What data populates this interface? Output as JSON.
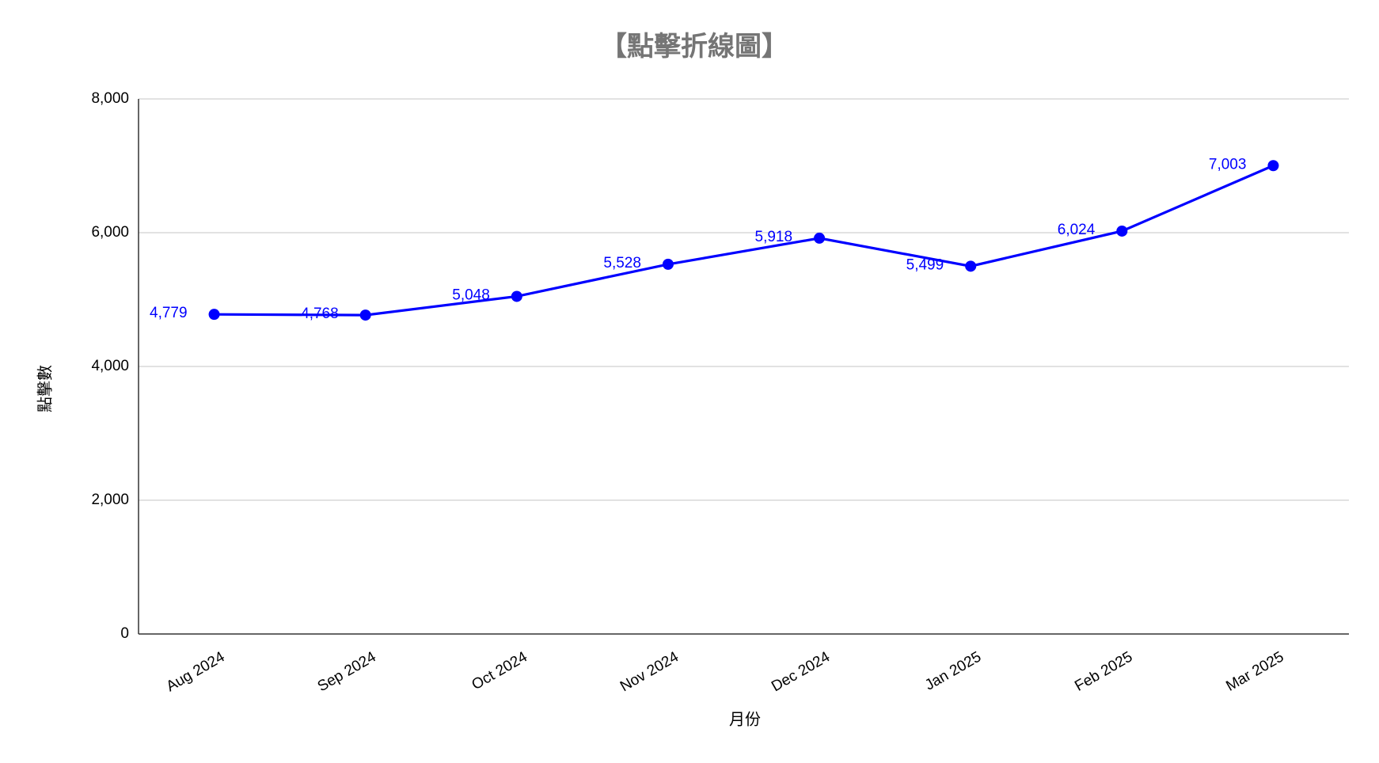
{
  "chart_data": {
    "type": "line",
    "title": "【點擊折線圖】",
    "x_label": "月份",
    "y_label": "點擊數",
    "categories": [
      "Aug 2024",
      "Sep 2024",
      "Oct 2024",
      "Nov 2024",
      "Dec 2024",
      "Jan 2025",
      "Feb 2025",
      "Mar 2025"
    ],
    "series": [
      {
        "name": "點擊數",
        "color": "#0000ff",
        "values": [
          4779,
          4768,
          5048,
          5528,
          5918,
          5499,
          6024,
          7003
        ],
        "value_labels": [
          "4,779",
          "4,768",
          "5,048",
          "5,528",
          "5,918",
          "5,499",
          "6,024",
          "7,003"
        ]
      }
    ],
    "ylim": [
      0,
      8000
    ],
    "yticks": [
      0,
      {
        "value": 2000,
        "label": "2,000"
      },
      {
        "value": 4000,
        "label": "4,000"
      },
      {
        "value": 6000,
        "label": "6,000"
      },
      {
        "value": 8000,
        "label": "8,000"
      }
    ],
    "grid": true
  }
}
